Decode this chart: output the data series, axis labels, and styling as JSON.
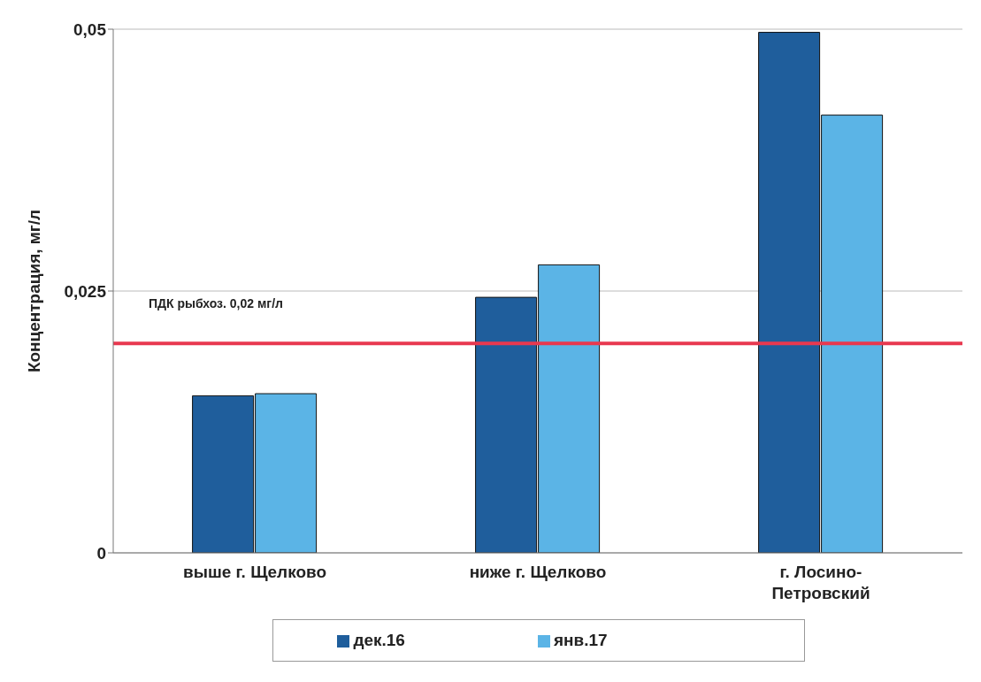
{
  "chart_data": {
    "type": "bar",
    "ylabel": "Концентрация, мг/л",
    "categories": [
      "выше г. Щелково",
      "ниже г. Щелково",
      "г. Лосино-Петровский"
    ],
    "series": [
      {
        "name": "дек.16",
        "color": "#1f5e9c",
        "values": [
          0.015,
          0.0244,
          0.0497
        ]
      },
      {
        "name": "янв.17",
        "color": "#5bb4e6",
        "values": [
          0.0152,
          0.0275,
          0.0418
        ]
      }
    ],
    "ylim": [
      0,
      0.05
    ],
    "yticks": [
      {
        "value": 0,
        "label": "0"
      },
      {
        "value": 0.025,
        "label": "0,025"
      },
      {
        "value": 0.05,
        "label": "0,05"
      }
    ],
    "grid": "y",
    "legend": "bottom",
    "ref_lines": [
      {
        "axis": "y",
        "value": 0.02,
        "label": "ПДК рыбхоз. 0,02 мг/л",
        "color": "#e8384f"
      }
    ]
  }
}
